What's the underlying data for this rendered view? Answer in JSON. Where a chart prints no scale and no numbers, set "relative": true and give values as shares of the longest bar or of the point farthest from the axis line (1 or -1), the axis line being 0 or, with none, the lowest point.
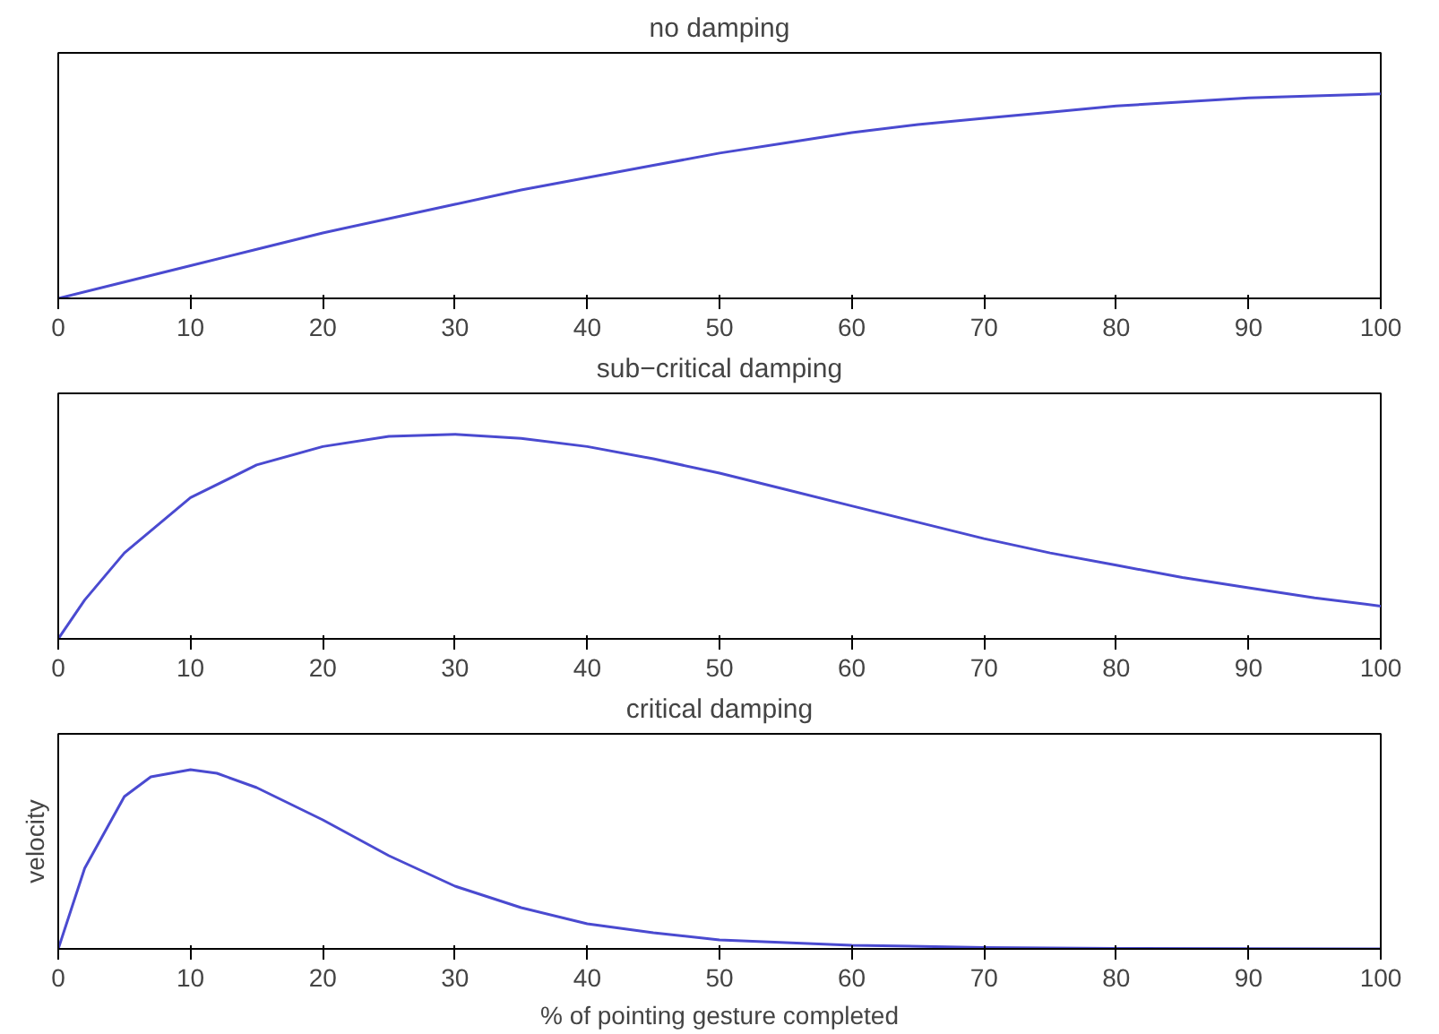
{
  "chart_data": [
    {
      "type": "line",
      "title": "no damping",
      "relative": true,
      "x": [
        0,
        5,
        10,
        15,
        20,
        25,
        30,
        35,
        40,
        45,
        50,
        55,
        60,
        65,
        70,
        75,
        80,
        85,
        90,
        95,
        100
      ],
      "xlim": [
        0,
        100
      ],
      "xticks": [
        0,
        10,
        20,
        30,
        40,
        50,
        60,
        70,
        80,
        90,
        100
      ],
      "series": [
        {
          "color": "#4a4ad0",
          "values": [
            0,
            0.08,
            0.16,
            0.24,
            0.32,
            0.39,
            0.46,
            0.53,
            0.59,
            0.65,
            0.71,
            0.76,
            0.81,
            0.85,
            0.88,
            0.91,
            0.94,
            0.96,
            0.98,
            0.99,
            1
          ]
        }
      ]
    },
    {
      "type": "line",
      "title": "sub−critical damping",
      "relative": true,
      "x": [
        0,
        2,
        5,
        10,
        15,
        20,
        25,
        30,
        35,
        40,
        45,
        50,
        55,
        60,
        65,
        70,
        75,
        80,
        85,
        90,
        95,
        100
      ],
      "xlim": [
        0,
        100
      ],
      "xticks": [
        0,
        10,
        20,
        30,
        40,
        50,
        60,
        70,
        80,
        90,
        100
      ],
      "series": [
        {
          "color": "#4a4ad0",
          "values": [
            0,
            0.19,
            0.42,
            0.69,
            0.85,
            0.94,
            0.99,
            1,
            0.98,
            0.94,
            0.88,
            0.81,
            0.73,
            0.65,
            0.57,
            0.49,
            0.42,
            0.36,
            0.3,
            0.25,
            0.2,
            0.16
          ]
        }
      ]
    },
    {
      "type": "line",
      "title": "critical damping",
      "xlabel": "% of pointing gesture completed",
      "ylabel": "velocity",
      "relative": true,
      "x": [
        0,
        2,
        5,
        7,
        10,
        12,
        15,
        20,
        25,
        30,
        35,
        40,
        45,
        50,
        60,
        70,
        80,
        90,
        100
      ],
      "xlim": [
        0,
        100
      ],
      "xticks": [
        0,
        10,
        20,
        30,
        40,
        50,
        60,
        70,
        80,
        90,
        100
      ],
      "series": [
        {
          "color": "#4a4ad0",
          "values": [
            0,
            0.45,
            0.85,
            0.96,
            1,
            0.98,
            0.9,
            0.72,
            0.52,
            0.35,
            0.23,
            0.14,
            0.09,
            0.05,
            0.02,
            0.008,
            0.003,
            0.001,
            0
          ]
        }
      ]
    }
  ]
}
